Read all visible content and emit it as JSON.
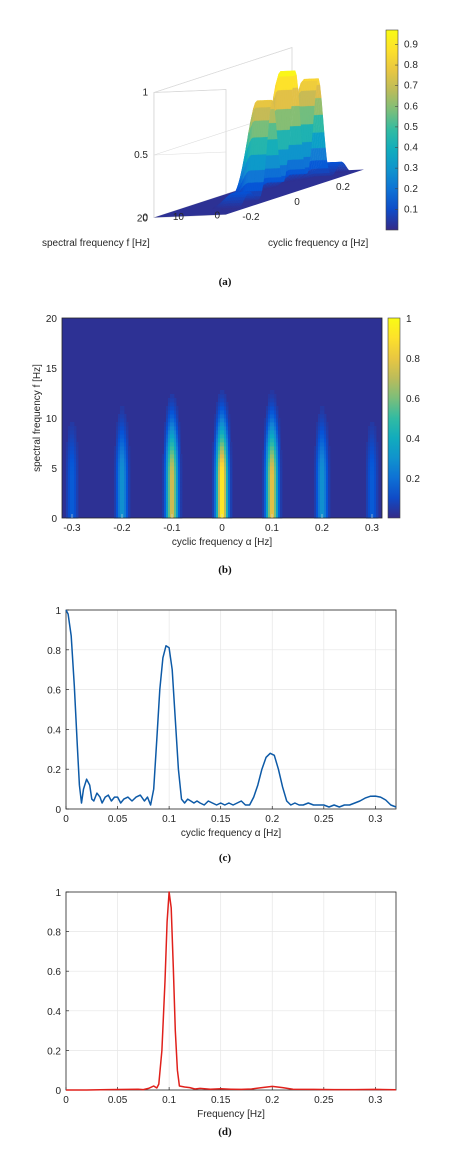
{
  "captions": [
    "(a)",
    "(b)",
    "(c)",
    "(d)"
  ],
  "colors": {
    "cyclic": "#0d5aa7",
    "freq": "#e0201b",
    "grid": "#e6e6e6",
    "axis": "#262626"
  },
  "chart_data": [
    {
      "type": "surface3d",
      "xlabel": "cyclic frequency α [Hz]",
      "ylabel": "spectral frequency f [Hz]",
      "xticks": [
        -0.2,
        0,
        0.2
      ],
      "yticks": [
        0,
        10,
        20
      ],
      "zticks": [
        0,
        0.5,
        1
      ],
      "zlim": [
        0,
        1
      ],
      "colorbar_ticks": [
        0.1,
        0.2,
        0.3,
        0.4,
        0.5,
        0.6,
        0.7,
        0.8,
        0.9
      ],
      "peaks": [
        {
          "alpha": -0.2,
          "max": 0.12
        },
        {
          "alpha": -0.1,
          "max": 0.8
        },
        {
          "alpha": 0,
          "max": 0.97
        },
        {
          "alpha": 0.1,
          "max": 0.85
        },
        {
          "alpha": 0.2,
          "max": 0.12
        }
      ]
    },
    {
      "type": "heatmap",
      "xlabel": "cyclic frequency α [Hz]",
      "ylabel": "spectral frequency f [Hz]",
      "xticks": [
        -0.3,
        -0.2,
        -0.1,
        0,
        0.1,
        0.2,
        0.3
      ],
      "yticks": [
        0,
        5,
        10,
        15,
        20
      ],
      "xlim": [
        -0.32,
        0.32
      ],
      "ylim": [
        0,
        20
      ],
      "colorbar_ticks": [
        0.2,
        0.4,
        0.6,
        0.8,
        1
      ],
      "ridges": [
        {
          "alpha": -0.3,
          "peak": 0.15
        },
        {
          "alpha": -0.2,
          "peak": 0.3
        },
        {
          "alpha": -0.1,
          "peak": 0.75
        },
        {
          "alpha": 0,
          "peak": 0.95
        },
        {
          "alpha": 0.1,
          "peak": 0.8
        },
        {
          "alpha": 0.2,
          "peak": 0.3
        },
        {
          "alpha": 0.3,
          "peak": 0.15
        }
      ]
    },
    {
      "type": "line",
      "xlabel": "cyclic frequency α [Hz]",
      "ylabel": "",
      "xlim": [
        0,
        0.32
      ],
      "ylim": [
        0,
        1
      ],
      "xticks": [
        0,
        0.05,
        0.1,
        0.15,
        0.2,
        0.25,
        0.3
      ],
      "yticks": [
        0,
        0.2,
        0.4,
        0.6,
        0.8,
        1
      ],
      "grid": true,
      "series": [
        {
          "points": [
            [
              0,
              1
            ],
            [
              0.002,
              0.98
            ],
            [
              0.005,
              0.87
            ],
            [
              0.008,
              0.62
            ],
            [
              0.011,
              0.32
            ],
            [
              0.013,
              0.12
            ],
            [
              0.015,
              0.03
            ],
            [
              0.017,
              0.1
            ],
            [
              0.02,
              0.15
            ],
            [
              0.023,
              0.12
            ],
            [
              0.025,
              0.05
            ],
            [
              0.027,
              0.04
            ],
            [
              0.03,
              0.08
            ],
            [
              0.033,
              0.06
            ],
            [
              0.035,
              0.03
            ],
            [
              0.038,
              0.06
            ],
            [
              0.041,
              0.07
            ],
            [
              0.044,
              0.04
            ],
            [
              0.047,
              0.06
            ],
            [
              0.05,
              0.06
            ],
            [
              0.053,
              0.03
            ],
            [
              0.056,
              0.05
            ],
            [
              0.06,
              0.06
            ],
            [
              0.064,
              0.04
            ],
            [
              0.068,
              0.06
            ],
            [
              0.072,
              0.07
            ],
            [
              0.076,
              0.04
            ],
            [
              0.079,
              0.06
            ],
            [
              0.082,
              0.02
            ],
            [
              0.085,
              0.1
            ],
            [
              0.088,
              0.35
            ],
            [
              0.091,
              0.6
            ],
            [
              0.094,
              0.76
            ],
            [
              0.097,
              0.82
            ],
            [
              0.1,
              0.81
            ],
            [
              0.103,
              0.7
            ],
            [
              0.106,
              0.45
            ],
            [
              0.109,
              0.2
            ],
            [
              0.112,
              0.05
            ],
            [
              0.115,
              0.03
            ],
            [
              0.118,
              0.05
            ],
            [
              0.121,
              0.04
            ],
            [
              0.124,
              0.03
            ],
            [
              0.127,
              0.04
            ],
            [
              0.13,
              0.03
            ],
            [
              0.134,
              0.02
            ],
            [
              0.138,
              0.04
            ],
            [
              0.142,
              0.03
            ],
            [
              0.146,
              0.02
            ],
            [
              0.15,
              0.03
            ],
            [
              0.154,
              0.02
            ],
            [
              0.158,
              0.03
            ],
            [
              0.162,
              0.02
            ],
            [
              0.166,
              0.03
            ],
            [
              0.17,
              0.04
            ],
            [
              0.174,
              0.02
            ],
            [
              0.178,
              0.02
            ],
            [
              0.182,
              0.06
            ],
            [
              0.186,
              0.12
            ],
            [
              0.19,
              0.2
            ],
            [
              0.194,
              0.26
            ],
            [
              0.198,
              0.28
            ],
            [
              0.202,
              0.27
            ],
            [
              0.206,
              0.2
            ],
            [
              0.21,
              0.11
            ],
            [
              0.214,
              0.04
            ],
            [
              0.218,
              0.02
            ],
            [
              0.222,
              0.03
            ],
            [
              0.226,
              0.02
            ],
            [
              0.23,
              0.02
            ],
            [
              0.235,
              0.03
            ],
            [
              0.24,
              0.02
            ],
            [
              0.245,
              0.02
            ],
            [
              0.25,
              0.02
            ],
            [
              0.255,
              0.01
            ],
            [
              0.26,
              0.02
            ],
            [
              0.265,
              0.01
            ],
            [
              0.27,
              0.02
            ],
            [
              0.275,
              0.02
            ],
            [
              0.28,
              0.03
            ],
            [
              0.285,
              0.04
            ],
            [
              0.29,
              0.055
            ],
            [
              0.295,
              0.064
            ],
            [
              0.3,
              0.065
            ],
            [
              0.305,
              0.06
            ],
            [
              0.31,
              0.045
            ],
            [
              0.315,
              0.02
            ],
            [
              0.32,
              0.01
            ]
          ]
        }
      ]
    },
    {
      "type": "line",
      "xlabel": "Frequency [Hz]",
      "ylabel": "",
      "xlim": [
        0,
        0.32
      ],
      "ylim": [
        0,
        1
      ],
      "xticks": [
        0,
        0.05,
        0.1,
        0.15,
        0.2,
        0.25,
        0.3
      ],
      "yticks": [
        0,
        0.2,
        0.4,
        0.6,
        0.8,
        1
      ],
      "grid": true,
      "series": [
        {
          "points": [
            [
              0,
              0
            ],
            [
              0.02,
              0
            ],
            [
              0.04,
              0.002
            ],
            [
              0.06,
              0.003
            ],
            [
              0.07,
              0.004
            ],
            [
              0.075,
              0.002
            ],
            [
              0.08,
              0.008
            ],
            [
              0.085,
              0.02
            ],
            [
              0.088,
              0.01
            ],
            [
              0.09,
              0.03
            ],
            [
              0.093,
              0.2
            ],
            [
              0.096,
              0.55
            ],
            [
              0.098,
              0.85
            ],
            [
              0.1,
              1
            ],
            [
              0.102,
              0.92
            ],
            [
              0.104,
              0.62
            ],
            [
              0.106,
              0.3
            ],
            [
              0.108,
              0.1
            ],
            [
              0.11,
              0.02
            ],
            [
              0.115,
              0.015
            ],
            [
              0.12,
              0.012
            ],
            [
              0.125,
              0.005
            ],
            [
              0.13,
              0.008
            ],
            [
              0.14,
              0.004
            ],
            [
              0.15,
              0.006
            ],
            [
              0.16,
              0.004
            ],
            [
              0.17,
              0.003
            ],
            [
              0.18,
              0.005
            ],
            [
              0.19,
              0.012
            ],
            [
              0.2,
              0.018
            ],
            [
              0.21,
              0.012
            ],
            [
              0.22,
              0.004
            ],
            [
              0.24,
              0.003
            ],
            [
              0.26,
              0.002
            ],
            [
              0.28,
              0.002
            ],
            [
              0.3,
              0.003
            ],
            [
              0.32,
              0.001
            ]
          ]
        }
      ]
    }
  ]
}
